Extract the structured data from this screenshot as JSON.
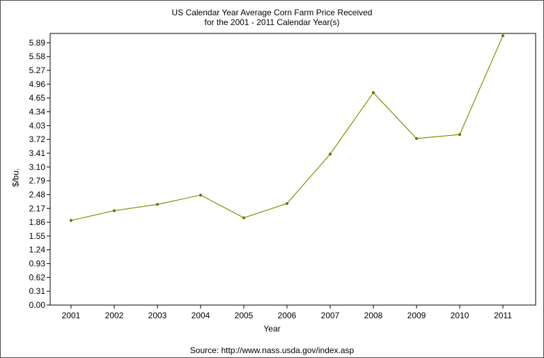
{
  "chart_data": {
    "type": "line",
    "title": "US Calendar Year Average Corn Farm Price Received",
    "subtitle": "for the 2001 - 2011 Calendar Year(s)",
    "xlabel": "Year",
    "ylabel": "$/bu.",
    "source": "Source: http://www.nass.usda.gov/index.asp",
    "categories": [
      "2001",
      "2002",
      "2003",
      "2004",
      "2005",
      "2006",
      "2007",
      "2008",
      "2009",
      "2010",
      "2011"
    ],
    "series": [
      {
        "values": [
          1.9,
          2.12,
          2.26,
          2.47,
          1.96,
          2.28,
          3.39,
          4.77,
          3.74,
          3.83,
          6.05
        ]
      }
    ],
    "y_ticks": [
      "0.00",
      "0.31",
      "0.62",
      "0.93",
      "1.24",
      "1.55",
      "1.86",
      "2.17",
      "2.48",
      "2.79",
      "3.10",
      "3.41",
      "3.72",
      "4.03",
      "4.34",
      "4.65",
      "4.96",
      "5.27",
      "5.58",
      "5.89"
    ],
    "ylim": [
      0,
      6.1
    ],
    "grid": false,
    "line_color": "#8b8b00",
    "marker_color": "#6b6b00"
  }
}
